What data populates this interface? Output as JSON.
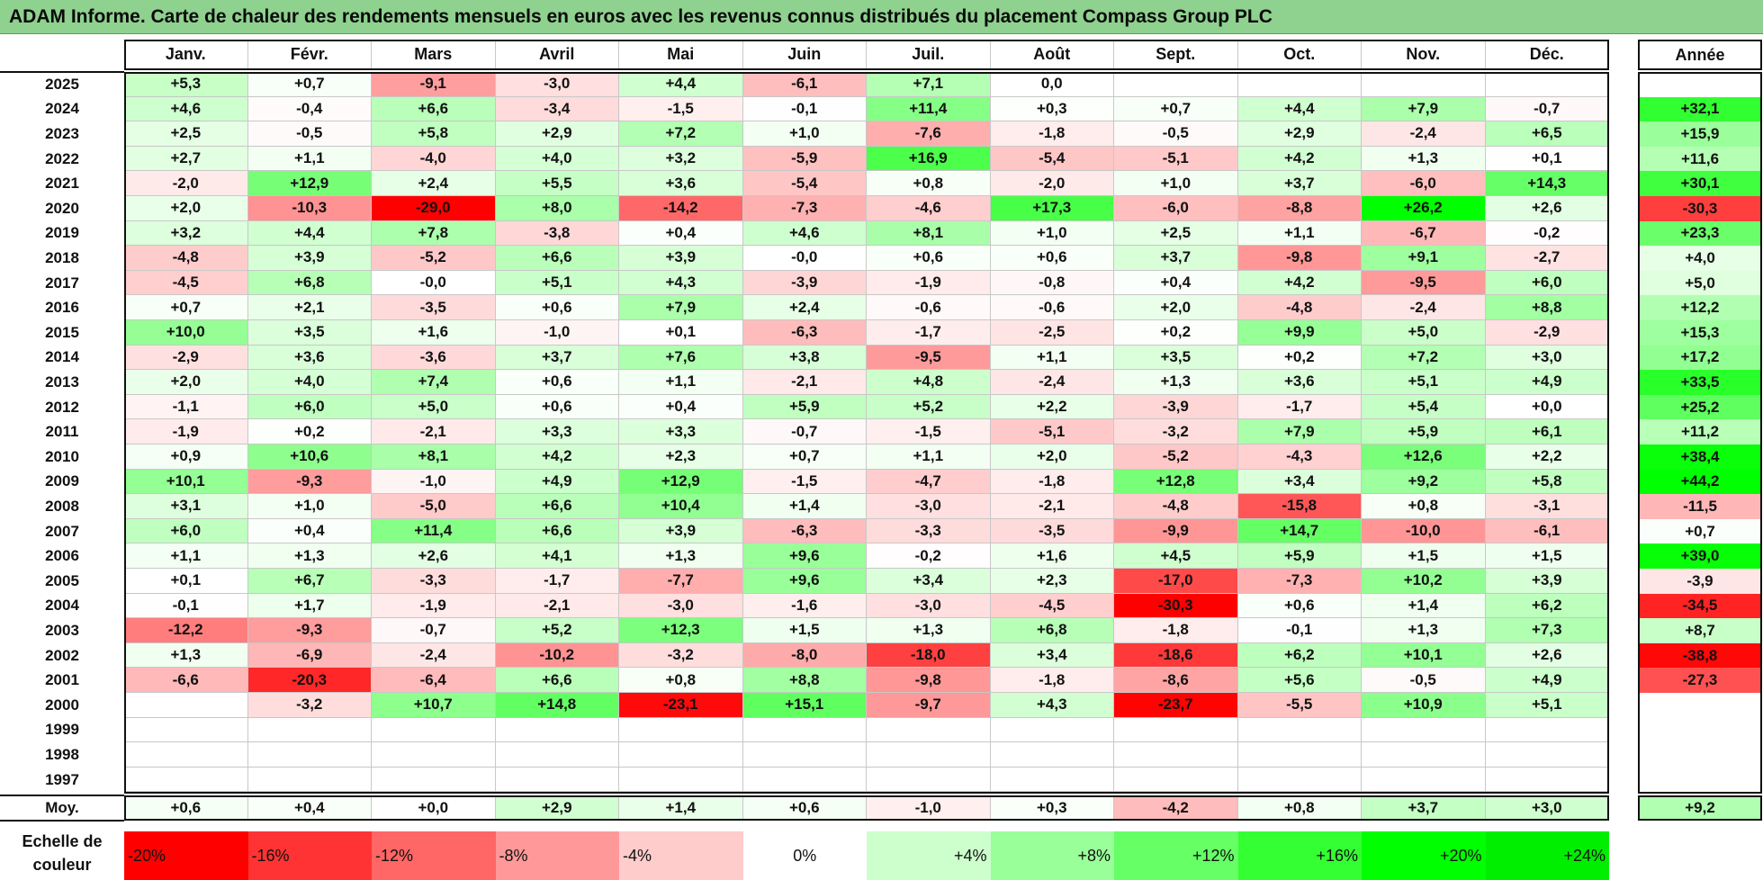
{
  "title": "ADAM Informe. Carte de chaleur des rendements mensuels en euros avec les revenus connus distribués du placement Compass Group PLC",
  "chart_data": {
    "type": "heatmap",
    "title": "ADAM Informe. Carte de chaleur des rendements mensuels en euros avec les revenus connus distribués du placement Compass Group PLC",
    "months": [
      "Janv.",
      "Févr.",
      "Mars",
      "Avril",
      "Mai",
      "Juin",
      "Juil.",
      "Août",
      "Sept.",
      "Oct.",
      "Nov.",
      "Déc."
    ],
    "year_header": "Année",
    "rows": [
      {
        "year": "2025",
        "values": [
          "+5,3",
          "+0,7",
          "-9,1",
          "-3,0",
          "+4,4",
          "-6,1",
          "+7,1",
          "0,0",
          "",
          "",
          "",
          ""
        ],
        "annual": ""
      },
      {
        "year": "2024",
        "values": [
          "+4,6",
          "-0,4",
          "+6,6",
          "-3,4",
          "-1,5",
          "-0,1",
          "+11,4",
          "+0,3",
          "+0,7",
          "+4,4",
          "+7,9",
          "-0,7"
        ],
        "annual": "+32,1"
      },
      {
        "year": "2023",
        "values": [
          "+2,5",
          "-0,5",
          "+5,8",
          "+2,9",
          "+7,2",
          "+1,0",
          "-7,6",
          "-1,8",
          "-0,5",
          "+2,9",
          "-2,4",
          "+6,5"
        ],
        "annual": "+15,9"
      },
      {
        "year": "2022",
        "values": [
          "+2,7",
          "+1,1",
          "-4,0",
          "+4,0",
          "+3,2",
          "-5,9",
          "+16,9",
          "-5,4",
          "-5,1",
          "+4,2",
          "+1,3",
          "+0,1"
        ],
        "annual": "+11,6"
      },
      {
        "year": "2021",
        "values": [
          "-2,0",
          "+12,9",
          "+2,4",
          "+5,5",
          "+3,6",
          "-5,4",
          "+0,8",
          "-2,0",
          "+1,0",
          "+3,7",
          "-6,0",
          "+14,3"
        ],
        "annual": "+30,1"
      },
      {
        "year": "2020",
        "values": [
          "+2,0",
          "-10,3",
          "-29,0",
          "+8,0",
          "-14,2",
          "-7,3",
          "-4,6",
          "+17,3",
          "-6,0",
          "-8,8",
          "+26,2",
          "+2,6"
        ],
        "annual": "-30,3"
      },
      {
        "year": "2019",
        "values": [
          "+3,2",
          "+4,4",
          "+7,8",
          "-3,8",
          "+0,4",
          "+4,6",
          "+8,1",
          "+1,0",
          "+2,5",
          "+1,1",
          "-6,7",
          "-0,2"
        ],
        "annual": "+23,3"
      },
      {
        "year": "2018",
        "values": [
          "-4,8",
          "+3,9",
          "-5,2",
          "+6,6",
          "+3,9",
          "-0,0",
          "+0,6",
          "+0,6",
          "+3,7",
          "-9,8",
          "+9,1",
          "-2,7"
        ],
        "annual": "+4,0"
      },
      {
        "year": "2017",
        "values": [
          "-4,5",
          "+6,8",
          "-0,0",
          "+5,1",
          "+4,3",
          "-3,9",
          "-1,9",
          "-0,8",
          "+0,4",
          "+4,2",
          "-9,5",
          "+6,0"
        ],
        "annual": "+5,0"
      },
      {
        "year": "2016",
        "values": [
          "+0,7",
          "+2,1",
          "-3,5",
          "+0,6",
          "+7,9",
          "+2,4",
          "-0,6",
          "-0,6",
          "+2,0",
          "-4,8",
          "-2,4",
          "+8,8"
        ],
        "annual": "+12,2"
      },
      {
        "year": "2015",
        "values": [
          "+10,0",
          "+3,5",
          "+1,6",
          "-1,0",
          "+0,1",
          "-6,3",
          "-1,7",
          "-2,5",
          "+0,2",
          "+9,9",
          "+5,0",
          "-2,9"
        ],
        "annual": "+15,3"
      },
      {
        "year": "2014",
        "values": [
          "-2,9",
          "+3,6",
          "-3,6",
          "+3,7",
          "+7,6",
          "+3,8",
          "-9,5",
          "+1,1",
          "+3,5",
          "+0,2",
          "+7,2",
          "+3,0"
        ],
        "annual": "+17,2"
      },
      {
        "year": "2013",
        "values": [
          "+2,0",
          "+4,0",
          "+7,4",
          "+0,6",
          "+1,1",
          "-2,1",
          "+4,8",
          "-2,4",
          "+1,3",
          "+3,6",
          "+5,1",
          "+4,9"
        ],
        "annual": "+33,5"
      },
      {
        "year": "2012",
        "values": [
          "-1,1",
          "+6,0",
          "+5,0",
          "+0,6",
          "+0,4",
          "+5,9",
          "+5,2",
          "+2,2",
          "-3,9",
          "-1,7",
          "+5,4",
          "+0,0"
        ],
        "annual": "+25,2"
      },
      {
        "year": "2011",
        "values": [
          "-1,9",
          "+0,2",
          "-2,1",
          "+3,3",
          "+3,3",
          "-0,7",
          "-1,5",
          "-5,1",
          "-3,2",
          "+7,9",
          "+5,9",
          "+6,1"
        ],
        "annual": "+11,2"
      },
      {
        "year": "2010",
        "values": [
          "+0,9",
          "+10,6",
          "+8,1",
          "+4,2",
          "+2,3",
          "+0,7",
          "+1,1",
          "+2,0",
          "-5,2",
          "-4,3",
          "+12,6",
          "+2,2"
        ],
        "annual": "+38,4"
      },
      {
        "year": "2009",
        "values": [
          "+10,1",
          "-9,3",
          "-1,0",
          "+4,9",
          "+12,9",
          "-1,5",
          "-4,7",
          "-1,8",
          "+12,8",
          "+3,4",
          "+9,2",
          "+5,8"
        ],
        "annual": "+44,2"
      },
      {
        "year": "2008",
        "values": [
          "+3,1",
          "+1,0",
          "-5,0",
          "+6,6",
          "+10,4",
          "+1,4",
          "-3,0",
          "-2,1",
          "-4,8",
          "-15,8",
          "+0,8",
          "-3,1"
        ],
        "annual": "-11,5"
      },
      {
        "year": "2007",
        "values": [
          "+6,0",
          "+0,4",
          "+11,4",
          "+6,6",
          "+3,9",
          "-6,3",
          "-3,3",
          "-3,5",
          "-9,9",
          "+14,7",
          "-10,0",
          "-6,1"
        ],
        "annual": "+0,7"
      },
      {
        "year": "2006",
        "values": [
          "+1,1",
          "+1,3",
          "+2,6",
          "+4,1",
          "+1,3",
          "+9,6",
          "-0,2",
          "+1,6",
          "+4,5",
          "+5,9",
          "+1,5",
          "+1,5"
        ],
        "annual": "+39,0"
      },
      {
        "year": "2005",
        "values": [
          "+0,1",
          "+6,7",
          "-3,3",
          "-1,7",
          "-7,7",
          "+9,6",
          "+3,4",
          "+2,3",
          "-17,0",
          "-7,3",
          "+10,2",
          "+3,9"
        ],
        "annual": "-3,9"
      },
      {
        "year": "2004",
        "values": [
          "-0,1",
          "+1,7",
          "-1,9",
          "-2,1",
          "-3,0",
          "-1,6",
          "-3,0",
          "-4,5",
          "-30,3",
          "+0,6",
          "+1,4",
          "+6,2"
        ],
        "annual": "-34,5"
      },
      {
        "year": "2003",
        "values": [
          "-12,2",
          "-9,3",
          "-0,7",
          "+5,2",
          "+12,3",
          "+1,5",
          "+1,3",
          "+6,8",
          "-1,8",
          "-0,1",
          "+1,3",
          "+7,3"
        ],
        "annual": "+8,7"
      },
      {
        "year": "2002",
        "values": [
          "+1,3",
          "-6,9",
          "-2,4",
          "-10,2",
          "-3,2",
          "-8,0",
          "-18,0",
          "+3,4",
          "-18,6",
          "+6,2",
          "+10,1",
          "+2,6"
        ],
        "annual": "-38,8"
      },
      {
        "year": "2001",
        "values": [
          "-6,6",
          "-20,3",
          "-6,4",
          "+6,6",
          "+0,8",
          "+8,8",
          "-9,8",
          "-1,8",
          "-8,6",
          "+5,6",
          "-0,5",
          "+4,9"
        ],
        "annual": "-27,3"
      },
      {
        "year": "2000",
        "values": [
          "",
          "-3,2",
          "+10,7",
          "+14,8",
          "-23,1",
          "+15,1",
          "-9,7",
          "+4,3",
          "-23,7",
          "-5,5",
          "+10,9",
          "+5,1"
        ],
        "annual": ""
      },
      {
        "year": "1999",
        "values": [
          "",
          "",
          "",
          "",
          "",
          "",
          "",
          "",
          "",
          "",
          "",
          ""
        ],
        "annual": ""
      },
      {
        "year": "1998",
        "values": [
          "",
          "",
          "",
          "",
          "",
          "",
          "",
          "",
          "",
          "",
          "",
          ""
        ],
        "annual": ""
      },
      {
        "year": "1997",
        "values": [
          "",
          "",
          "",
          "",
          "",
          "",
          "",
          "",
          "",
          "",
          "",
          ""
        ],
        "annual": ""
      }
    ],
    "average": {
      "label": "Moy.",
      "values": [
        "+0,6",
        "+0,4",
        "+0,0",
        "+2,9",
        "+1,4",
        "+0,6",
        "-1,0",
        "+0,3",
        "-4,2",
        "+0,8",
        "+3,7",
        "+3,0"
      ],
      "annual": "+9,2"
    },
    "color_scale": {
      "label": "Echelle de couleur",
      "stops": [
        {
          "label": "-20%",
          "value": -20,
          "color": "#ff0000"
        },
        {
          "label": "-16%",
          "value": -16,
          "color": "#ff3333"
        },
        {
          "label": "-12%",
          "value": -12,
          "color": "#ff6666"
        },
        {
          "label": "-8%",
          "value": -8,
          "color": "#ff9999"
        },
        {
          "label": "-4%",
          "value": -4,
          "color": "#ffcccc"
        },
        {
          "label": "0%",
          "value": 0,
          "color": "#ffffff"
        },
        {
          "label": "+4%",
          "value": 4,
          "color": "#ccffcc"
        },
        {
          "label": "+8%",
          "value": 8,
          "color": "#99ff99"
        },
        {
          "label": "+12%",
          "value": 12,
          "color": "#66ff66"
        },
        {
          "label": "+16%",
          "value": 16,
          "color": "#33ff33"
        },
        {
          "label": "+20%",
          "value": 20,
          "color": "#00ff00"
        },
        {
          "label": "+24%",
          "value": 24,
          "color": "#00ee00"
        }
      ]
    }
  }
}
